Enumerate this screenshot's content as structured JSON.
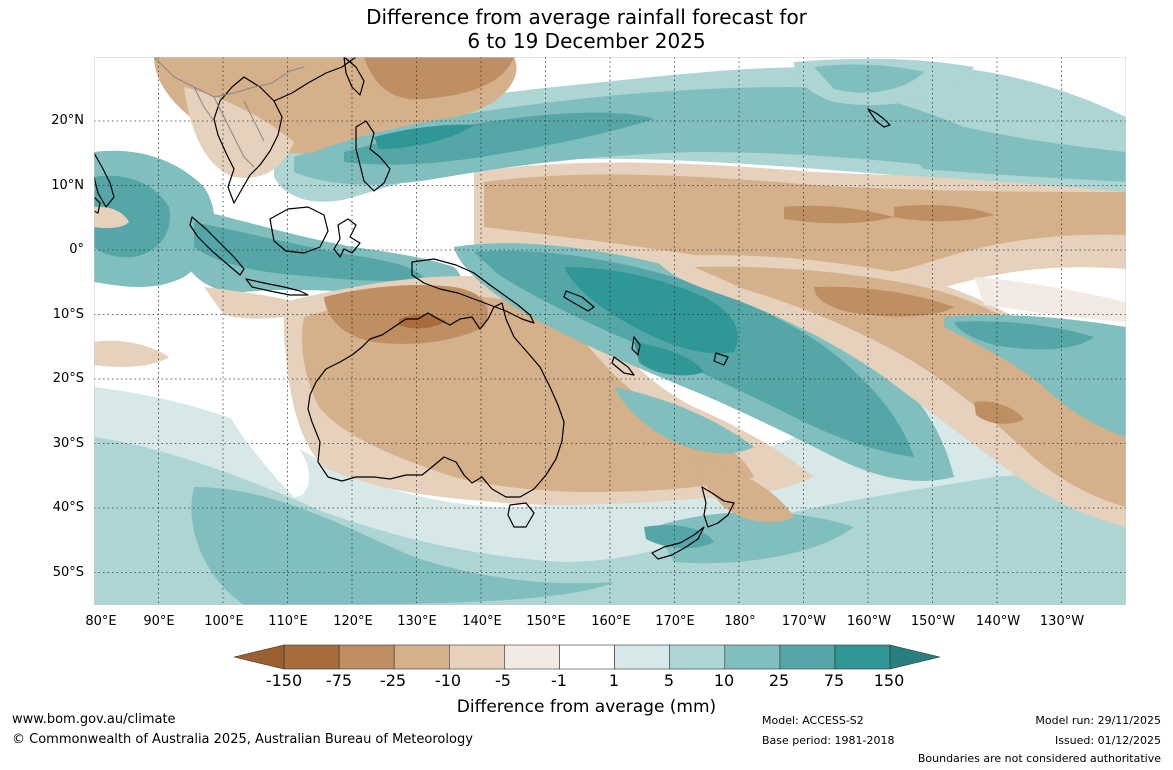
{
  "title": {
    "line1": "Difference from average rainfall forecast for",
    "line2": "6 to 19 December 2025"
  },
  "axes": {
    "lat_ticks": [
      "20°N",
      "10°N",
      "0°",
      "10°S",
      "20°S",
      "30°S",
      "40°S",
      "50°S"
    ],
    "lon_ticks": [
      "80°E",
      "90°E",
      "100°E",
      "110°E",
      "120°E",
      "130°E",
      "140°E",
      "150°E",
      "160°E",
      "170°E",
      "180°",
      "170°W",
      "160°W",
      "150°W",
      "140°W",
      "130°W"
    ]
  },
  "map_data": {
    "lon_range": [
      80,
      240
    ],
    "lat_range": [
      -55,
      30
    ],
    "gridlines": true,
    "colors": {
      "brown_150": "#a86d3a",
      "brown_75": "#be8f62",
      "brown_25": "#d4b08b",
      "brown_10": "#e5d1bc",
      "brown_5": "#f2ebe3",
      "neutral": "#ffffff",
      "teal_5": "#d6e9e8",
      "teal_10": "#add5d4",
      "teal_25": "#80bfbd",
      "teal_75": "#54a7a6",
      "teal_150": "#2f9795"
    }
  },
  "legend": {
    "title": "Difference from average (mm)",
    "labels": [
      "-150",
      "-75",
      "-25",
      "-10",
      "-5",
      "-1",
      "1",
      "5",
      "10",
      "25",
      "75",
      "150"
    ],
    "colors": [
      "#a86d3a",
      "#be8f62",
      "#d4b08b",
      "#e5d1bc",
      "#f2ebe3",
      "#ffffff",
      "#d6e9e8",
      "#add5d4",
      "#80bfbd",
      "#54a7a6",
      "#2f9795"
    ],
    "low_arrow_color": "#9b6030",
    "high_arrow_color": "#2a7f7e"
  },
  "footer": {
    "website": "www.bom.gov.au/climate",
    "copyright": "© Commonwealth of Australia 2025, Australian Bureau of Meteorology",
    "model": "Model: ACCESS-S2",
    "base_period": "Base period: 1981-2018",
    "model_run": "Model run: 29/11/2025",
    "issued": "Issued: 01/12/2025",
    "disclaimer": "Boundaries are not considered authoritative"
  }
}
